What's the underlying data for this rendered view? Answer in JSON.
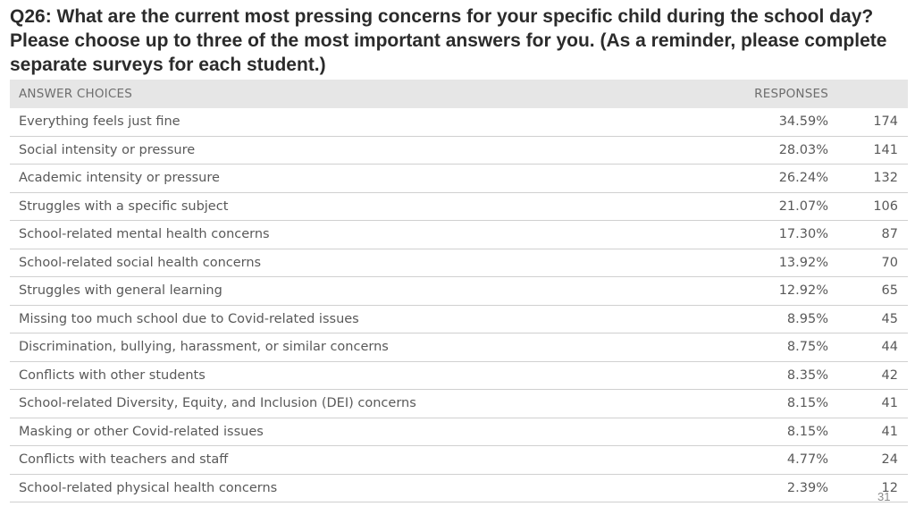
{
  "title": "Q26: What are the current most pressing concerns for your specific child during the school day? Please choose up to three of the most important answers for you. (As a reminder, please complete separate surveys for each student.)",
  "table_header": {
    "answer_choices": "ANSWER CHOICES",
    "responses": "RESPONSES"
  },
  "rows": [
    {
      "label": "Everything feels just fine",
      "pct": "34.59%",
      "count": "174"
    },
    {
      "label": "Social intensity or pressure",
      "pct": "28.03%",
      "count": "141"
    },
    {
      "label": "Academic intensity or pressure",
      "pct": "26.24%",
      "count": "132"
    },
    {
      "label": "Struggles with a specific subject",
      "pct": "21.07%",
      "count": "106"
    },
    {
      "label": "School-related mental health concerns",
      "pct": "17.30%",
      "count": "87"
    },
    {
      "label": "School-related social health concerns",
      "pct": "13.92%",
      "count": "70"
    },
    {
      "label": "Struggles with general learning",
      "pct": "12.92%",
      "count": "65"
    },
    {
      "label": "Missing too much school due to Covid-related issues",
      "pct": "8.95%",
      "count": "45"
    },
    {
      "label": "Discrimination, bullying, harassment, or similar concerns",
      "pct": "8.75%",
      "count": "44"
    },
    {
      "label": "Conflicts with other students",
      "pct": "8.35%",
      "count": "42"
    },
    {
      "label": "School-related Diversity, Equity, and Inclusion (DEI) concerns",
      "pct": "8.15%",
      "count": "41"
    },
    {
      "label": "Masking or other Covid-related issues",
      "pct": "8.15%",
      "count": "41"
    },
    {
      "label": "Conflicts with teachers and staff",
      "pct": "4.77%",
      "count": "24"
    },
    {
      "label": "School-related physical health concerns",
      "pct": "2.39%",
      "count": "12"
    }
  ],
  "page_number": "31",
  "chart_data": {
    "type": "table",
    "title": "Q26: What are the current most pressing concerns for your specific child during the school day? Please choose up to three of the most important answers for you. (As a reminder, please complete separate surveys for each student.)",
    "columns": [
      "ANSWER CHOICES",
      "RESPONSES"
    ],
    "categories": [
      "Everything feels just fine",
      "Social intensity or pressure",
      "Academic intensity or pressure",
      "Struggles with a specific subject",
      "School-related mental health concerns",
      "School-related social health concerns",
      "Struggles with general learning",
      "Missing too much school due to Covid-related issues",
      "Discrimination, bullying, harassment, or similar concerns",
      "Conflicts with other students",
      "School-related Diversity, Equity, and Inclusion (DEI) concerns",
      "Masking or other Covid-related issues",
      "Conflicts with teachers and staff",
      "School-related physical health concerns"
    ],
    "percentages": [
      34.59,
      28.03,
      26.24,
      21.07,
      17.3,
      13.92,
      12.92,
      8.95,
      8.75,
      8.35,
      8.15,
      8.15,
      4.77,
      2.39
    ],
    "counts": [
      174,
      141,
      132,
      106,
      87,
      70,
      65,
      45,
      44,
      42,
      41,
      41,
      24,
      12
    ]
  }
}
